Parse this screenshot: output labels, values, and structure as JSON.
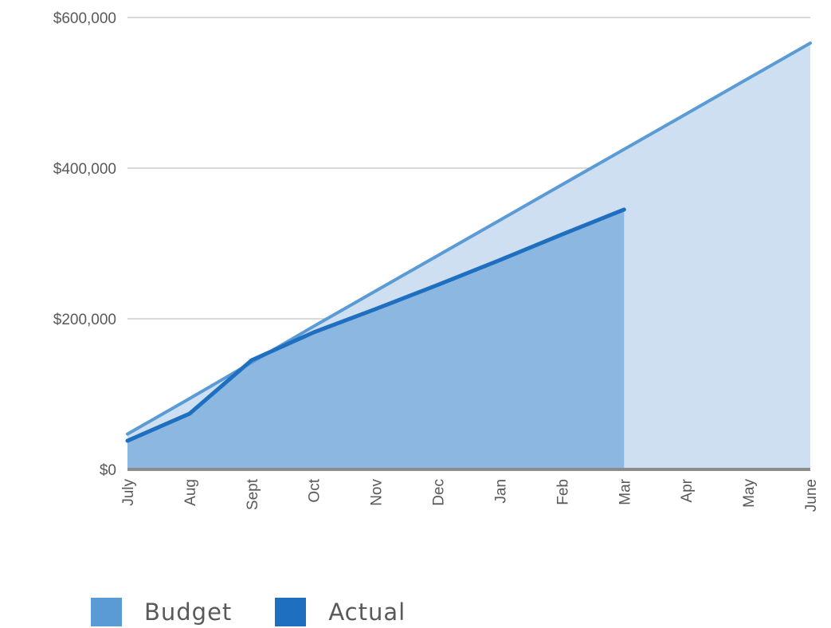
{
  "chart_data": {
    "type": "area",
    "categories": [
      "July",
      "Aug",
      "Sept",
      "Oct",
      "Nov",
      "Dec",
      "Jan",
      "Feb",
      "Mar",
      "Apr",
      "May",
      "June"
    ],
    "y_tick_labels": [
      "$0",
      "$200,000",
      "$400,000",
      "$600,000"
    ],
    "y_ticks": [
      0,
      200000,
      400000,
      600000
    ],
    "ylim": [
      0,
      600000
    ],
    "grid": true,
    "legend_position": "bottom-left",
    "series": [
      {
        "name": "Budget",
        "color": "#5b9bd5",
        "fill_color": "#cddff0",
        "values": [
          47000,
          94000,
          142000,
          190000,
          237000,
          284000,
          331000,
          378000,
          425000,
          472000,
          519000,
          566000
        ]
      },
      {
        "name": "Actual",
        "color": "#1f6fc0",
        "fill_color": "#8bb7e0",
        "values": [
          38000,
          74000,
          145000,
          182000,
          213000,
          245000,
          278000,
          312000,
          345000,
          null,
          null,
          null
        ]
      }
    ],
    "title": "",
    "xlabel": "",
    "ylabel": ""
  }
}
